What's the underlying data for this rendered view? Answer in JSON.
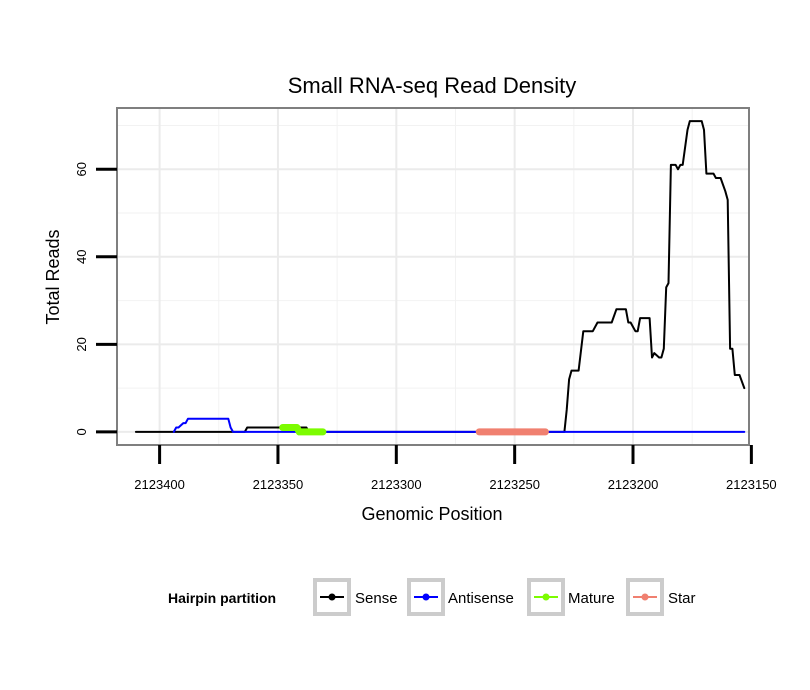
{
  "chart_data": {
    "type": "line",
    "title": "Small RNA-seq Read Density",
    "xlabel": "Genomic Position",
    "ylabel": "Total Reads",
    "x_reversed": true,
    "xlim": [
      2123151,
      2123418
    ],
    "ylim": [
      -3,
      74
    ],
    "x_ticks": [
      2123400,
      2123350,
      2123300,
      2123250,
      2123200,
      2123150
    ],
    "x_tick_labels": [
      "2123400",
      "2123350",
      "2123300",
      "2123250",
      "2123200",
      "2123150"
    ],
    "y_ticks": [
      0,
      20,
      40,
      60
    ],
    "y_tick_labels": [
      "0",
      "20",
      "40",
      "60"
    ],
    "grid": true,
    "legend": {
      "title": "Hairpin partition",
      "position": "bottom",
      "entries": [
        {
          "name": "Sense",
          "color": "#000000"
        },
        {
          "name": "Antisense",
          "color": "#0000ff"
        },
        {
          "name": "Mature",
          "color": "#7cfc00"
        },
        {
          "name": "Star",
          "color": "#f08070"
        }
      ]
    },
    "series": [
      {
        "name": "Sense",
        "color": "#000000",
        "points": [
          [
            2123410,
            0
          ],
          [
            2123364,
            0
          ],
          [
            2123363,
            1
          ],
          [
            2123338,
            1
          ],
          [
            2123337,
            0
          ],
          [
            2123229,
            0
          ],
          [
            2123228,
            5
          ],
          [
            2123227,
            12
          ],
          [
            2123226,
            14
          ],
          [
            2123223,
            14
          ],
          [
            2123221,
            23
          ],
          [
            2123217,
            23
          ],
          [
            2123215,
            25
          ],
          [
            2123209,
            25
          ],
          [
            2123207,
            28
          ],
          [
            2123203,
            28
          ],
          [
            2123202,
            25
          ],
          [
            2123201,
            25
          ],
          [
            2123199,
            23
          ],
          [
            2123198,
            23
          ],
          [
            2123197,
            26
          ],
          [
            2123193,
            26
          ],
          [
            2123192,
            17
          ],
          [
            2123191,
            18
          ],
          [
            2123189,
            17
          ],
          [
            2123188,
            17
          ],
          [
            2123187,
            19
          ],
          [
            2123186,
            33
          ],
          [
            2123185,
            34
          ],
          [
            2123184,
            61
          ],
          [
            2123182,
            61
          ],
          [
            2123181,
            60
          ],
          [
            2123180,
            61
          ],
          [
            2123179,
            61
          ],
          [
            2123177,
            69
          ],
          [
            2123176,
            71
          ],
          [
            2123171,
            71
          ],
          [
            2123170,
            69
          ],
          [
            2123169,
            59
          ],
          [
            2123166,
            59
          ],
          [
            2123165,
            58
          ],
          [
            2123163,
            58
          ],
          [
            2123161,
            55
          ],
          [
            2123160,
            53
          ],
          [
            2123159,
            19
          ],
          [
            2123158,
            19
          ],
          [
            2123157,
            13
          ],
          [
            2123155,
            13
          ],
          [
            2123153,
            10
          ]
        ]
      },
      {
        "name": "Antisense",
        "color": "#0000ff",
        "points": [
          [
            2123394,
            0
          ],
          [
            2123393,
            1
          ],
          [
            2123392,
            1
          ],
          [
            2123390,
            2
          ],
          [
            2123389,
            2
          ],
          [
            2123388,
            3
          ],
          [
            2123371,
            3
          ],
          [
            2123370,
            1
          ],
          [
            2123369,
            0
          ],
          [
            2123153,
            0
          ]
        ]
      },
      {
        "name": "Mature",
        "color": "#7cfc00",
        "points": [
          [
            2123348,
            1
          ],
          [
            2123342,
            1
          ],
          [
            2123341,
            0
          ],
          [
            2123331,
            0
          ]
        ]
      },
      {
        "name": "Star",
        "color": "#f08070",
        "points": [
          [
            2123265,
            0
          ],
          [
            2123237,
            0
          ]
        ]
      }
    ]
  }
}
